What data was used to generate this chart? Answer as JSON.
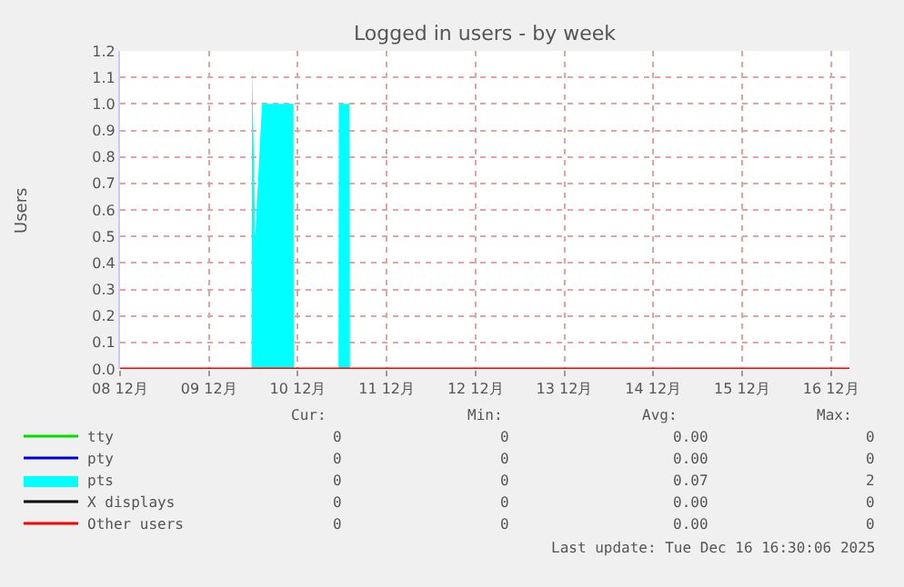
{
  "chart_data": {
    "type": "area",
    "title": "Logged in users - by week",
    "ylabel": "Users",
    "series": [
      {
        "name": "tty",
        "color": "#00dd00",
        "type": "line"
      },
      {
        "name": "pty",
        "color": "#0000dd",
        "type": "line"
      },
      {
        "name": "pts",
        "color": "#00ffff",
        "x": [
          "2025-12-08T00:00",
          "2025-12-09T11:30",
          "2025-12-09T11:40",
          "2025-12-09T12:30",
          "2025-12-09T14:20",
          "2025-12-09T22:50",
          "2025-12-09T22:55",
          "2025-12-10T11:00",
          "2025-12-10T11:05",
          "2025-12-10T14:00",
          "2025-12-10T14:05",
          "2025-12-16T05:00"
        ],
        "values": [
          0,
          0,
          1.15,
          0.5,
          1.0,
          1.0,
          0,
          0,
          1.0,
          1.0,
          0,
          0
        ]
      },
      {
        "name": "X displays",
        "color": "#000000",
        "type": "line"
      },
      {
        "name": "Other users",
        "color": "#ff0000",
        "type": "line",
        "x": [
          "2025-12-08T00:00",
          "2025-12-16T05:00"
        ],
        "values": [
          0,
          0
        ]
      }
    ],
    "xlim": [
      "2025-12-08T00:00",
      "2025-12-16T05:00"
    ],
    "xticks": [
      {
        "value": "2025-12-08",
        "label": "08 12月"
      },
      {
        "value": "2025-12-09",
        "label": "09 12月"
      },
      {
        "value": "2025-12-10",
        "label": "10 12月"
      },
      {
        "value": "2025-12-11",
        "label": "11 12月"
      },
      {
        "value": "2025-12-12",
        "label": "12 12月"
      },
      {
        "value": "2025-12-13",
        "label": "13 12月"
      },
      {
        "value": "2025-12-14",
        "label": "14 12月"
      },
      {
        "value": "2025-12-15",
        "label": "15 12月"
      },
      {
        "value": "2025-12-16",
        "label": "16 12月"
      }
    ],
    "ylim": [
      0,
      1.2
    ],
    "yticks": [
      {
        "value": 0,
        "label": "0.0"
      },
      0.1,
      0.2,
      0.3,
      0.4,
      0.5,
      0.6,
      0.7,
      0.8,
      0.9,
      {
        "value": 1,
        "label": "1.0"
      },
      1.1,
      1.2
    ],
    "grid": true,
    "legend": "bottom",
    "annotations": [
      "Cur:",
      "Min:",
      "Avg:",
      "Max:",
      "0",
      "0",
      "0.00",
      "0",
      "0",
      "0",
      "0.00",
      "0",
      "0",
      "0",
      "0.07",
      "2",
      "0",
      "0",
      "0.00",
      "0",
      "0",
      "0",
      "0.00",
      "0",
      "Last update: Tue Dec 16 16:30:06 2025"
    ]
  }
}
